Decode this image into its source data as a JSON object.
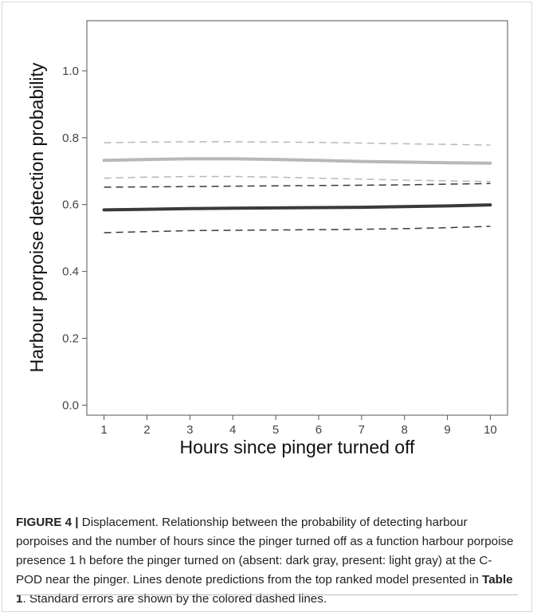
{
  "chart_data": {
    "type": "line",
    "xlabel": "Hours since pinger turned off",
    "ylabel": "Harbour porpoise detection probability",
    "x": [
      1,
      2,
      3,
      4,
      5,
      6,
      7,
      8,
      9,
      10
    ],
    "xlim": [
      0.6,
      10.4
    ],
    "ylim": [
      -0.03,
      1.15
    ],
    "xticks": [
      "1",
      "2",
      "3",
      "4",
      "5",
      "6",
      "7",
      "8",
      "9",
      "10"
    ],
    "yticks": [
      "0.0",
      "0.2",
      "0.4",
      "0.6",
      "0.8",
      "1.0"
    ],
    "grid": false,
    "series": [
      {
        "group": "present",
        "kind": "fit",
        "color": "#b8b8b8",
        "dashed": false,
        "values": [
          0.732,
          0.735,
          0.737,
          0.737,
          0.735,
          0.732,
          0.729,
          0.727,
          0.725,
          0.724
        ]
      },
      {
        "group": "present",
        "kind": "upper-se",
        "color": "#b8b8b8",
        "dashed": true,
        "values": [
          0.785,
          0.787,
          0.788,
          0.788,
          0.787,
          0.786,
          0.784,
          0.782,
          0.78,
          0.778
        ]
      },
      {
        "group": "present",
        "kind": "lower-se",
        "color": "#b8b8b8",
        "dashed": true,
        "values": [
          0.679,
          0.682,
          0.684,
          0.684,
          0.682,
          0.679,
          0.676,
          0.673,
          0.671,
          0.669
        ]
      },
      {
        "group": "absent",
        "kind": "fit",
        "color": "#3a3a3a",
        "dashed": false,
        "values": [
          0.584,
          0.586,
          0.588,
          0.589,
          0.59,
          0.591,
          0.592,
          0.594,
          0.596,
          0.599
        ]
      },
      {
        "group": "absent",
        "kind": "upper-se",
        "color": "#3a3a3a",
        "dashed": true,
        "values": [
          0.652,
          0.653,
          0.654,
          0.655,
          0.656,
          0.657,
          0.658,
          0.659,
          0.661,
          0.663
        ]
      },
      {
        "group": "absent",
        "kind": "lower-se",
        "color": "#3a3a3a",
        "dashed": true,
        "values": [
          0.516,
          0.519,
          0.522,
          0.523,
          0.524,
          0.525,
          0.526,
          0.528,
          0.531,
          0.535
        ]
      }
    ]
  },
  "caption": {
    "figure_label": "FIGURE 4 |",
    "part1": " Displacement. Relationship between the probability of detecting harbour porpoises and the number of hours since the pinger turned off as a function harbour porpoise presence 1 h before the pinger turned on (absent: dark gray, present: light gray) at the C-POD near the pinger. Lines denote predictions from the top ranked model presented in ",
    "table_ref": "Table 1",
    "part2": ". Standard errors are shown by the colored dashed lines."
  }
}
